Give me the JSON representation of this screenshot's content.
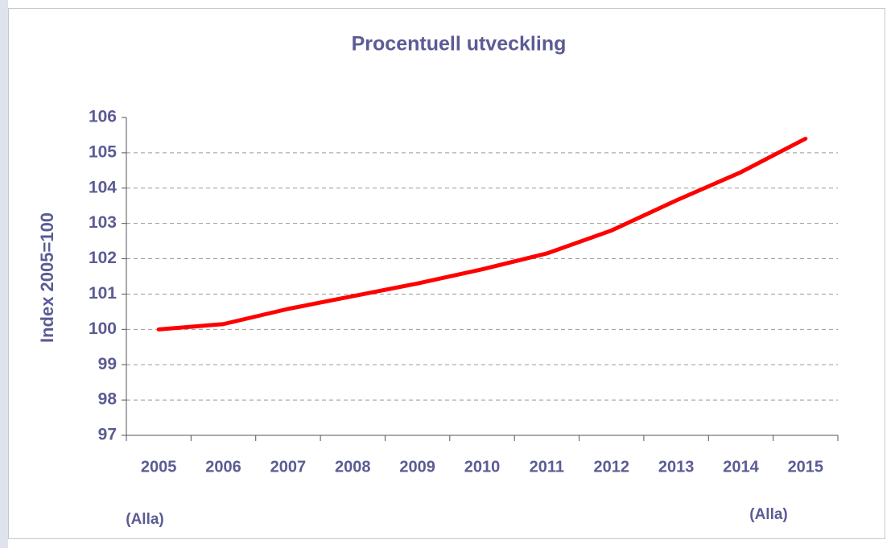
{
  "chart_data": {
    "type": "line",
    "title": "Procentuell utveckling",
    "y_label": "Index 2005=100",
    "categories": [
      "2005",
      "2006",
      "2007",
      "2008",
      "2009",
      "2010",
      "2011",
      "2012",
      "2013",
      "2014",
      "2015"
    ],
    "series": [
      {
        "name": "Index",
        "color": "#ff0000",
        "values": [
          100,
          100.15,
          100.58,
          100.94,
          101.3,
          101.7,
          102.15,
          102.8,
          103.65,
          104.45,
          105.4
        ]
      }
    ],
    "ylim": [
      97,
      106
    ],
    "yticks": [
      97,
      98,
      99,
      100,
      101,
      102,
      103,
      104,
      105,
      106
    ],
    "grid": true,
    "annotations": [
      "(Alla)",
      "(Alla)"
    ]
  }
}
